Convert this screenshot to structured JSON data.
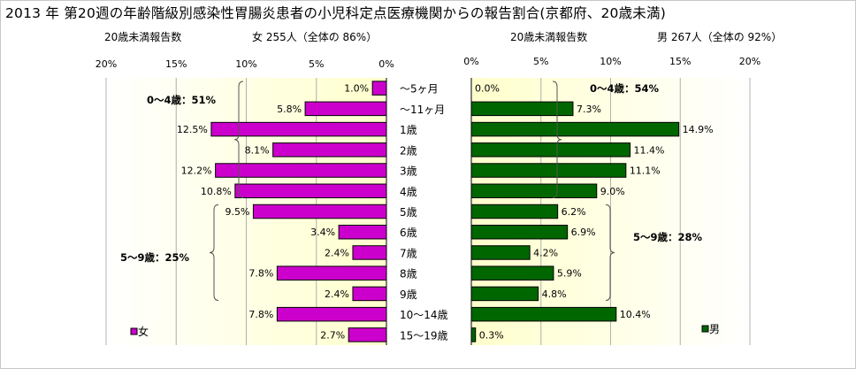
{
  "title": "2013 年 第20週の年齢階級別感染性胃腸炎患者の小児科定点医療機関からの報告割合(京都府、20歳未満)",
  "left_header": {
    "caption": "20歳未満報告数",
    "summary": "女  255人（全体の  86%）"
  },
  "right_header": {
    "caption": "20歳未満報告数",
    "summary": "男  267人（全体の  92%）"
  },
  "colors": {
    "female": "#cc00cc",
    "male": "#006600",
    "panel_bg": "#ffffcc",
    "grid": "#b0b0b0"
  },
  "chart_data": {
    "type": "bar",
    "categories": [
      "～5ヶ月",
      "～11ヶ月",
      "1歳",
      "2歳",
      "3歳",
      "4歳",
      "5歳",
      "6歳",
      "7歳",
      "8歳",
      "9歳",
      "10～14歳",
      "15～19歳"
    ],
    "xlim": [
      0,
      20
    ],
    "ticks": [
      "0%",
      "5%",
      "10%",
      "15%",
      "20%"
    ],
    "series": [
      {
        "name": "女",
        "side": "left",
        "values": [
          1.0,
          5.8,
          12.5,
          8.1,
          12.2,
          10.8,
          9.5,
          3.4,
          2.4,
          7.8,
          2.4,
          7.8,
          2.7
        ],
        "labels": [
          "1.0%",
          "5.8%",
          "12.5%",
          "8.1%",
          "12.2%",
          "10.8%",
          "9.5%",
          "3.4%",
          "2.4%",
          "7.8%",
          "2.4%",
          "7.8%",
          "2.7%"
        ]
      },
      {
        "name": "男",
        "side": "right",
        "values": [
          0.0,
          7.3,
          14.9,
          11.4,
          11.1,
          9.0,
          6.2,
          6.9,
          4.2,
          5.9,
          4.8,
          10.4,
          0.3
        ],
        "labels": [
          "0.0%",
          "7.3%",
          "14.9%",
          "11.4%",
          "11.1%",
          "9.0%",
          "6.2%",
          "6.9%",
          "4.2%",
          "5.9%",
          "4.8%",
          "10.4%",
          "0.3%"
        ]
      }
    ],
    "annotations": [
      {
        "side": "left",
        "text": "0～4歳：51%",
        "from": 0,
        "to": 5
      },
      {
        "side": "left",
        "text": "5～9歳：25%",
        "from": 6,
        "to": 10
      },
      {
        "side": "right",
        "text": "0～4歳：54%",
        "from": 0,
        "to": 5
      },
      {
        "side": "right",
        "text": "5～9歳：28%",
        "from": 6,
        "to": 10
      }
    ]
  }
}
